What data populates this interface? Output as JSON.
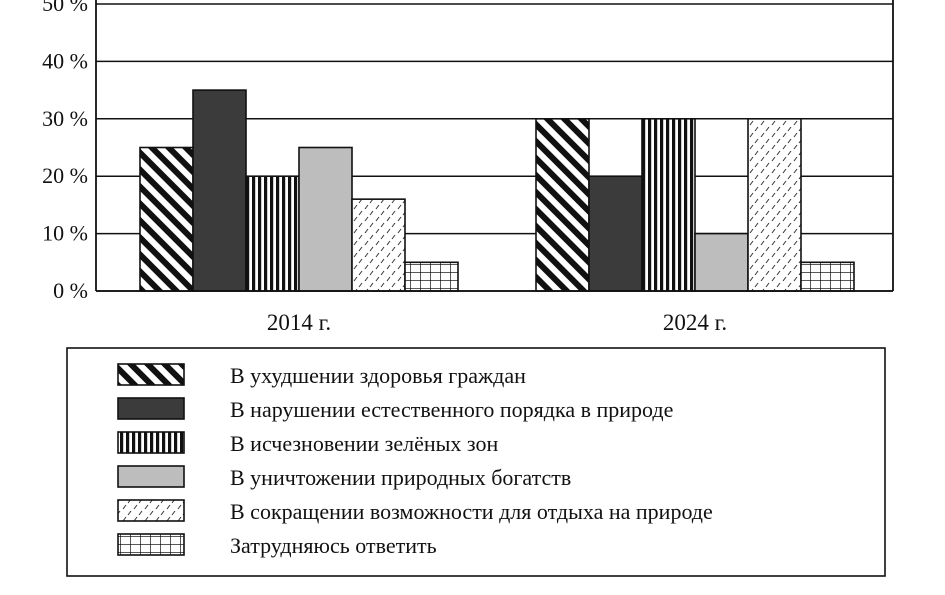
{
  "chart_data": {
    "type": "bar",
    "categories": [
      "2014 г.",
      "2024 г."
    ],
    "ylim": [
      0,
      50
    ],
    "yticks": [
      0,
      10,
      20,
      30,
      40,
      50
    ],
    "ytick_labels": [
      "0 %",
      "10 %",
      "20 %",
      "30 %",
      "40 %",
      "50 %"
    ],
    "grid": true,
    "legend_placement": "bottom",
    "series": [
      {
        "name": "В ухудшении здоровья граждан",
        "values": [
          25,
          30
        ],
        "pattern": "diagonal"
      },
      {
        "name": "В нарушении естественного порядка в природе",
        "values": [
          35,
          20
        ],
        "pattern": "solid-dark"
      },
      {
        "name": "В исчезновении зелёных зон",
        "values": [
          20,
          30
        ],
        "pattern": "vertical"
      },
      {
        "name": "В уничтожении природных богатств",
        "values": [
          25,
          10
        ],
        "pattern": "solid-gray"
      },
      {
        "name": "В сокращении возможности для отдыха на природе",
        "values": [
          16,
          30
        ],
        "pattern": "dashes"
      },
      {
        "name": "Затрудняюсь ответить",
        "values": [
          5,
          5
        ],
        "pattern": "grid"
      }
    ],
    "colors": {
      "ink": "#111111",
      "dark_fill": "#3b3b3b",
      "gray_fill": "#bdbdbd",
      "background": "#ffffff"
    }
  }
}
